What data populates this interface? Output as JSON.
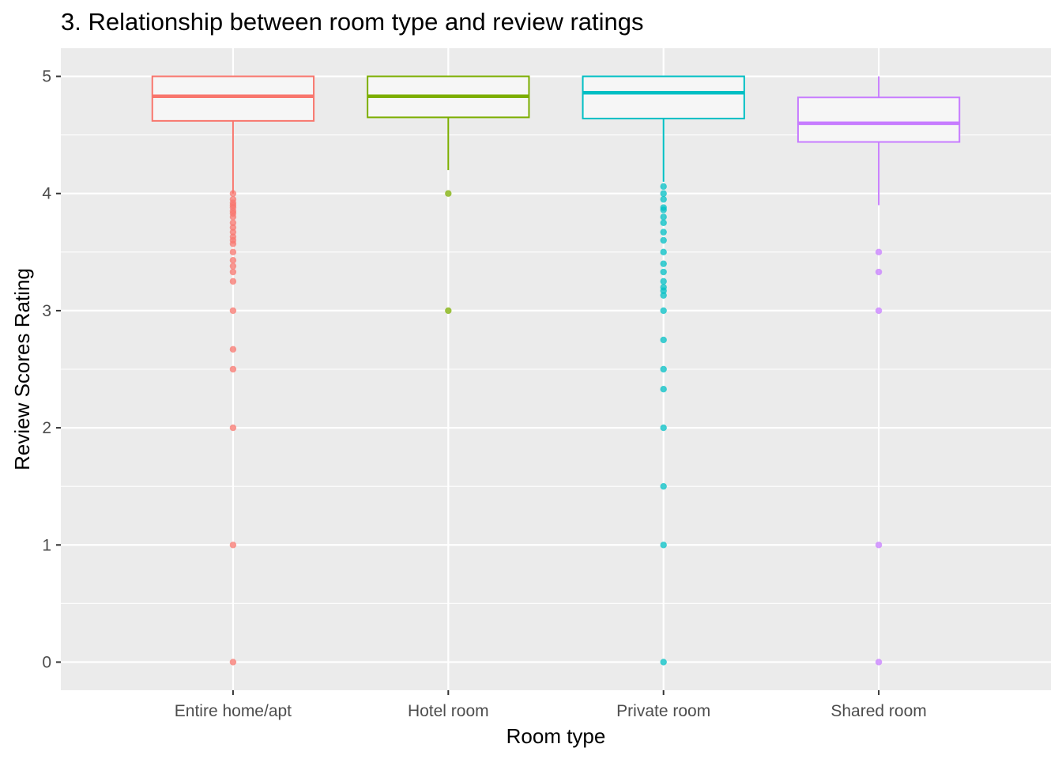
{
  "chart_data": {
    "type": "boxplot",
    "title": "3. Relationship between room type and review ratings",
    "xlabel": "Room type",
    "ylabel": "Review Scores Rating",
    "ylim": [
      -0.24,
      5.24
    ],
    "yticks": [
      0,
      1,
      2,
      3,
      4,
      5
    ],
    "grid": true,
    "categories": [
      "Entire home/apt",
      "Hotel room",
      "Private room",
      "Shared room"
    ],
    "series": [
      {
        "category": "Entire home/apt",
        "color": "#F8766D",
        "q1": 4.62,
        "median": 4.83,
        "q3": 5.0,
        "whisker_low": 4.0,
        "whisker_high": 5.0,
        "outliers": [
          4.0,
          3.95,
          3.92,
          3.9,
          3.88,
          3.85,
          3.83,
          3.8,
          3.75,
          3.71,
          3.67,
          3.63,
          3.6,
          3.57,
          3.5,
          3.43,
          3.38,
          3.33,
          3.25,
          3.0,
          2.67,
          2.5,
          2.0,
          1.0,
          0.0
        ]
      },
      {
        "category": "Hotel room",
        "color": "#7CAE00",
        "q1": 4.65,
        "median": 4.83,
        "q3": 5.0,
        "whisker_low": 4.2,
        "whisker_high": 5.0,
        "outliers": [
          4.0,
          3.0
        ]
      },
      {
        "category": "Private room",
        "color": "#00BFC4",
        "q1": 4.64,
        "median": 4.86,
        "q3": 5.0,
        "whisker_low": 4.1,
        "whisker_high": 5.0,
        "outliers": [
          4.06,
          4.0,
          3.95,
          3.88,
          3.86,
          3.8,
          3.75,
          3.67,
          3.6,
          3.5,
          3.4,
          3.33,
          3.25,
          3.2,
          3.17,
          3.13,
          3.0,
          2.75,
          2.5,
          2.33,
          2.0,
          1.5,
          1.0,
          0.0
        ]
      },
      {
        "category": "Shared room",
        "color": "#C77CFF",
        "q1": 4.44,
        "median": 4.6,
        "q3": 4.82,
        "whisker_low": 3.9,
        "whisker_high": 5.0,
        "outliers": [
          3.5,
          3.33,
          3.0,
          1.0,
          0.0
        ]
      }
    ],
    "panel_background": "#EBEBEB",
    "box_fill": "#F6F6F6"
  }
}
